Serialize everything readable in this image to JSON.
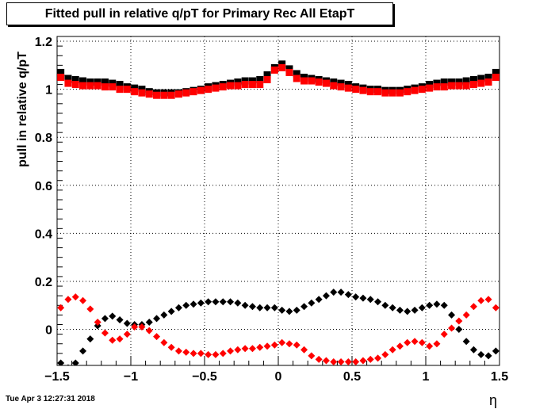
{
  "chart_data": {
    "type": "scatter",
    "title": "Fitted pull in relative q/pT  for Primary Rec All EtapT",
    "xlabel": "η",
    "ylabel": "pull in relative q/pT",
    "xlim": [
      -1.5,
      1.5
    ],
    "ylim": [
      -0.15,
      1.22
    ],
    "grid": true,
    "x_ticks": [
      -1.5,
      -1,
      -0.5,
      0,
      0.5,
      1,
      1.5
    ],
    "x_tick_labels": [
      "−1.5",
      "−1",
      "−0.5",
      "0",
      "0.5",
      "1",
      "1.5"
    ],
    "y_ticks": [
      0,
      0.2,
      0.4,
      0.6,
      0.8,
      1,
      1.2
    ],
    "y_tick_labels": [
      "0",
      "0.2",
      "0.4",
      "0.6",
      "0.8",
      "1",
      "1.2"
    ],
    "x": [
      -1.475,
      -1.425,
      -1.375,
      -1.325,
      -1.275,
      -1.225,
      -1.175,
      -1.125,
      -1.075,
      -1.025,
      -0.975,
      -0.925,
      -0.875,
      -0.825,
      -0.775,
      -0.725,
      -0.675,
      -0.625,
      -0.575,
      -0.525,
      -0.475,
      -0.425,
      -0.375,
      -0.325,
      -0.275,
      -0.225,
      -0.175,
      -0.125,
      -0.075,
      -0.025,
      0.025,
      0.075,
      0.125,
      0.175,
      0.225,
      0.275,
      0.325,
      0.375,
      0.425,
      0.475,
      0.525,
      0.575,
      0.625,
      0.675,
      0.725,
      0.775,
      0.825,
      0.875,
      0.925,
      0.975,
      1.025,
      1.075,
      1.125,
      1.175,
      1.225,
      1.275,
      1.325,
      1.375,
      1.425,
      1.475
    ],
    "series": [
      {
        "marker": "square",
        "color": "#000000",
        "values": [
          1.07,
          1.045,
          1.04,
          1.035,
          1.03,
          1.03,
          1.03,
          1.025,
          1.02,
          1.01,
          1.005,
          1.0,
          0.99,
          0.985,
          0.985,
          0.985,
          0.985,
          0.99,
          0.995,
          1.0,
          1.01,
          1.015,
          1.02,
          1.025,
          1.03,
          1.035,
          1.035,
          1.04,
          1.06,
          1.09,
          1.105,
          1.085,
          1.065,
          1.05,
          1.045,
          1.04,
          1.035,
          1.03,
          1.025,
          1.02,
          1.01,
          1.005,
          1.0,
          1.0,
          0.995,
          0.995,
          0.995,
          1.0,
          1.005,
          1.01,
          1.02,
          1.025,
          1.03,
          1.03,
          1.03,
          1.035,
          1.04,
          1.045,
          1.05,
          1.07
        ]
      },
      {
        "marker": "square",
        "color": "#ff0000",
        "values": [
          1.05,
          1.025,
          1.02,
          1.015,
          1.015,
          1.015,
          1.01,
          1.01,
          1.0,
          1.0,
          0.99,
          0.985,
          0.98,
          0.975,
          0.975,
          0.975,
          0.98,
          0.985,
          0.99,
          0.995,
          1.0,
          1.005,
          1.01,
          1.015,
          1.015,
          1.02,
          1.02,
          1.02,
          1.04,
          1.08,
          1.09,
          1.07,
          1.045,
          1.035,
          1.035,
          1.03,
          1.025,
          1.015,
          1.01,
          1.005,
          1.0,
          0.995,
          0.99,
          0.99,
          0.985,
          0.985,
          0.985,
          0.99,
          0.995,
          1.0,
          1.005,
          1.01,
          1.01,
          1.015,
          1.015,
          1.015,
          1.02,
          1.025,
          1.03,
          1.05
        ]
      },
      {
        "marker": "diamond",
        "color": "#000000",
        "values": [
          -0.14,
          -0.16,
          -0.14,
          -0.09,
          -0.04,
          0.015,
          0.045,
          0.055,
          0.04,
          0.025,
          0.02,
          0.02,
          0.03,
          0.045,
          0.06,
          0.075,
          0.09,
          0.1,
          0.105,
          0.11,
          0.115,
          0.115,
          0.115,
          0.115,
          0.11,
          0.1,
          0.095,
          0.09,
          0.09,
          0.09,
          0.08,
          0.075,
          0.08,
          0.095,
          0.11,
          0.125,
          0.14,
          0.155,
          0.155,
          0.145,
          0.135,
          0.13,
          0.125,
          0.115,
          0.1,
          0.09,
          0.08,
          0.075,
          0.08,
          0.09,
          0.1,
          0.105,
          0.1,
          0.06,
          0.0,
          -0.05,
          -0.085,
          -0.105,
          -0.11,
          -0.09
        ]
      },
      {
        "marker": "diamond",
        "color": "#ff0000",
        "values": [
          0.09,
          0.125,
          0.135,
          0.12,
          0.085,
          0.03,
          -0.015,
          -0.045,
          -0.04,
          -0.02,
          0.01,
          0.01,
          -0.005,
          -0.03,
          -0.055,
          -0.075,
          -0.09,
          -0.095,
          -0.1,
          -0.1,
          -0.105,
          -0.105,
          -0.1,
          -0.09,
          -0.085,
          -0.08,
          -0.08,
          -0.075,
          -0.07,
          -0.065,
          -0.055,
          -0.06,
          -0.065,
          -0.085,
          -0.11,
          -0.125,
          -0.13,
          -0.135,
          -0.135,
          -0.135,
          -0.135,
          -0.13,
          -0.125,
          -0.12,
          -0.105,
          -0.085,
          -0.07,
          -0.055,
          -0.05,
          -0.055,
          -0.07,
          -0.06,
          -0.02,
          0.005,
          0.035,
          0.06,
          0.095,
          0.12,
          0.125,
          0.09
        ]
      }
    ]
  },
  "timestamp": "Tue Apr  3 12:27:31 2018"
}
